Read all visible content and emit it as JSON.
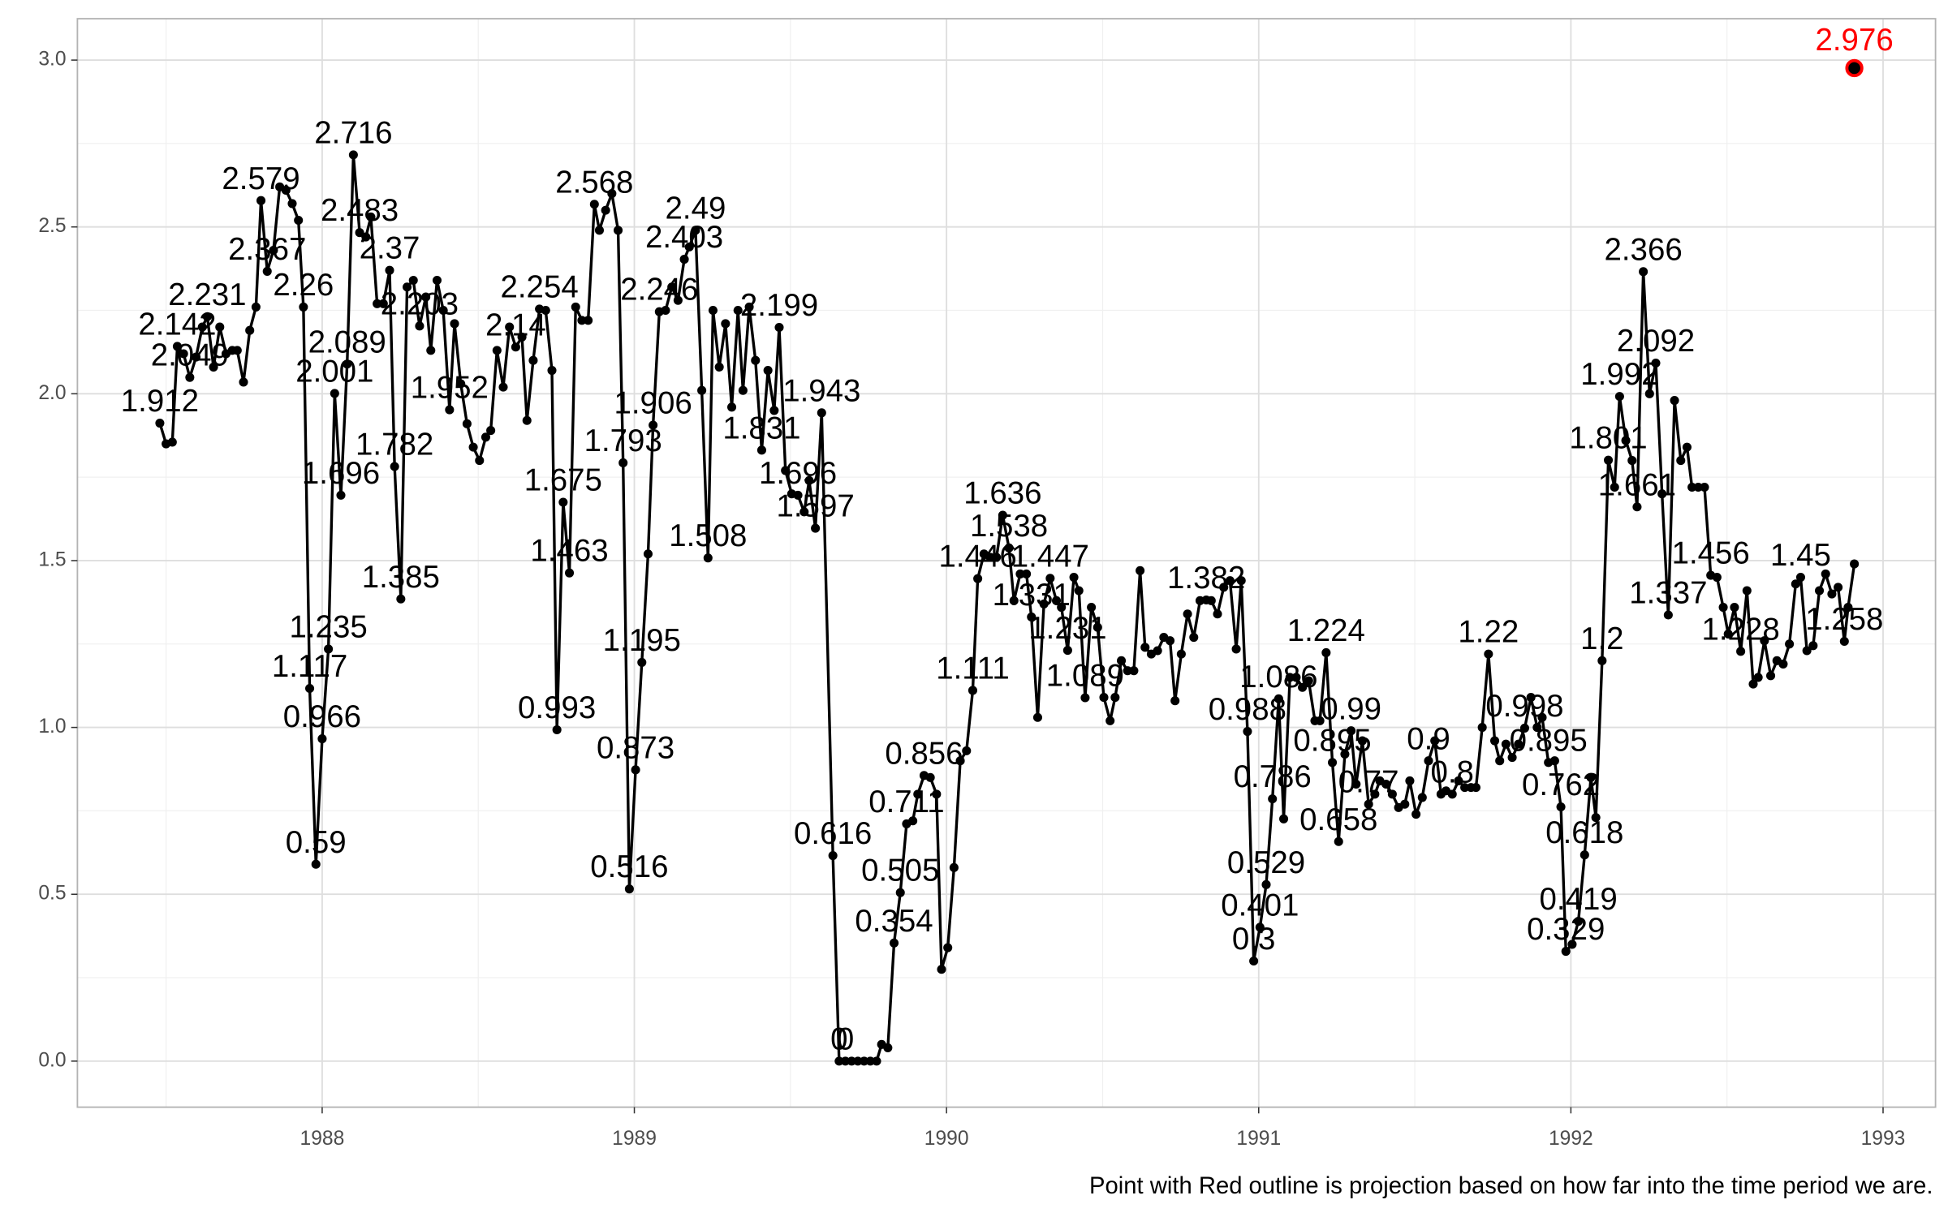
{
  "chart_data": {
    "type": "line",
    "caption": "Point with Red outline is projection based on how far into the time period we are.",
    "x": [
      1987.48,
      1987.5,
      1987.52,
      1987.536,
      1987.556,
      1987.576,
      1987.596,
      1987.616,
      1987.632,
      1987.652,
      1987.672,
      1987.692,
      1987.712,
      1987.728,
      1987.748,
      1987.768,
      1987.788,
      1987.804,
      1987.824,
      1987.844,
      1987.864,
      1987.884,
      1987.904,
      1987.924,
      1987.94,
      1987.96,
      1987.98,
      1988,
      1988.02,
      1988.04,
      1988.06,
      1988.08,
      1988.1,
      1988.12,
      1988.14,
      1988.156,
      1988.176,
      1988.196,
      1988.216,
      1988.232,
      1988.252,
      1988.272,
      1988.292,
      1988.312,
      1988.332,
      1988.348,
      1988.368,
      1988.388,
      1988.408,
      1988.424,
      1988.444,
      1988.464,
      1988.484,
      1988.504,
      1988.524,
      1988.54,
      1988.56,
      1988.58,
      1988.6,
      1988.62,
      1988.64,
      1988.656,
      1988.676,
      1988.696,
      1988.716,
      1988.736,
      1988.752,
      1988.772,
      1988.792,
      1988.812,
      1988.832,
      1988.852,
      1988.872,
      1988.888,
      1988.908,
      1988.928,
      1988.948,
      1988.964,
      1988.984,
      1989.004,
      1989.024,
      1989.044,
      1989.06,
      1989.08,
      1989.1,
      1989.12,
      1989.14,
      1989.16,
      1989.176,
      1989.196,
      1989.216,
      1989.236,
      1989.252,
      1989.272,
      1989.292,
      1989.312,
      1989.332,
      1989.348,
      1989.368,
      1989.388,
      1989.408,
      1989.428,
      1989.448,
      1989.464,
      1989.484,
      1989.504,
      1989.524,
      1989.544,
      1989.56,
      1989.58,
      1989.6,
      1989.636,
      1989.656,
      1989.676,
      1989.696,
      1989.716,
      1989.736,
      1989.756,
      1989.776,
      1989.792,
      1989.812,
      1989.832,
      1989.852,
      1989.872,
      1989.892,
      1989.908,
      1989.928,
      1989.948,
      1989.968,
      1989.984,
      1990.004,
      1990.024,
      1990.044,
      1990.064,
      1990.084,
      1990.1,
      1990.12,
      1990.14,
      1990.16,
      1990.18,
      1990.2,
      1990.216,
      1990.236,
      1990.256,
      1990.272,
      1990.292,
      1990.312,
      1990.332,
      1990.352,
      1990.368,
      1990.388,
      1990.408,
      1990.424,
      1990.444,
      1990.464,
      1990.484,
      1990.504,
      1990.524,
      1990.54,
      1990.56,
      1990.58,
      1990.6,
      1990.62,
      1990.636,
      1990.656,
      1990.676,
      1990.696,
      1990.716,
      1990.732,
      1990.752,
      1990.772,
      1990.792,
      1990.812,
      1990.832,
      1990.848,
      1990.868,
      1990.888,
      1990.908,
      1990.928,
      1990.944,
      1990.964,
      1990.984,
      1991.004,
      1991.024,
      1991.044,
      1991.064,
      1991.08,
      1991.1,
      1991.12,
      1991.14,
      1991.16,
      1991.18,
      1991.196,
      1991.216,
      1991.236,
      1991.256,
      1991.276,
      1991.296,
      1991.312,
      1991.332,
      1991.352,
      1991.372,
      1991.388,
      1991.408,
      1991.428,
      1991.448,
      1991.468,
      1991.484,
      1991.504,
      1991.524,
      1991.544,
      1991.564,
      1991.584,
      1991.6,
      1991.62,
      1991.64,
      1991.66,
      1991.68,
      1991.696,
      1991.716,
      1991.736,
      1991.756,
      1991.772,
      1991.792,
      1991.812,
      1991.832,
      1991.852,
      1991.872,
      1991.892,
      1991.908,
      1991.928,
      1991.948,
      1991.968,
      1991.984,
      1992.004,
      1992.024,
      1992.044,
      1992.064,
      1992.08,
      1992.1,
      1992.12,
      1992.14,
      1992.156,
      1992.176,
      1992.196,
      1992.212,
      1992.232,
      1992.252,
      1992.272,
      1992.292,
      1992.312,
      1992.332,
      1992.352,
      1992.372,
      1992.388,
      1992.408,
      1992.428,
      1992.448,
      1992.468,
      1992.488,
      1992.504,
      1992.524,
      1992.544,
      1992.564,
      1992.584,
      1992.6,
      1992.62,
      1992.64,
      1992.66,
      1992.68,
      1992.7,
      1992.72,
      1992.736,
      1992.756,
      1992.776,
      1992.796,
      1992.816,
      1992.836,
      1992.856,
      1992.876,
      1992.888,
      1992.908
    ],
    "series": [
      {
        "color": "#000000",
        "values": [
          1.912,
          1.85,
          1.855,
          2.142,
          2.12,
          2.049,
          2.11,
          2.2,
          2.231,
          2.08,
          2.2,
          2.12,
          2.13,
          2.13,
          2.035,
          2.19,
          2.26,
          2.579,
          2.367,
          2.43,
          2.62,
          2.61,
          2.57,
          2.52,
          2.26,
          1.117,
          0.59,
          0.966,
          1.235,
          2.001,
          1.696,
          2.089,
          2.716,
          2.483,
          2.47,
          2.53,
          2.27,
          2.27,
          2.37,
          1.782,
          1.385,
          2.32,
          2.34,
          2.203,
          2.29,
          2.13,
          2.34,
          2.25,
          1.952,
          2.21,
          2.03,
          1.91,
          1.84,
          1.8,
          1.87,
          1.89,
          2.13,
          2.02,
          2.2,
          2.14,
          2.17,
          1.92,
          2.1,
          2.254,
          2.25,
          2.07,
          0.993,
          1.675,
          1.463,
          2.26,
          2.22,
          2.22,
          2.568,
          2.49,
          2.55,
          2.6,
          2.49,
          1.793,
          0.516,
          0.873,
          1.195,
          1.52,
          1.906,
          2.246,
          2.25,
          2.32,
          2.28,
          2.403,
          2.44,
          2.49,
          2.01,
          1.508,
          2.25,
          2.08,
          2.21,
          1.96,
          2.25,
          2.01,
          2.26,
          2.1,
          1.831,
          2.07,
          1.95,
          2.199,
          1.77,
          1.7,
          1.696,
          1.646,
          1.74,
          1.597,
          1.943,
          0.616,
          0,
          0,
          0,
          0,
          0,
          0,
          0,
          0.05,
          0.04,
          0.354,
          0.505,
          0.711,
          0.72,
          0.8,
          0.856,
          0.85,
          0.8,
          0.275,
          0.34,
          0.58,
          0.9,
          0.93,
          1.111,
          1.446,
          1.52,
          1.51,
          1.51,
          1.636,
          1.538,
          1.38,
          1.46,
          1.46,
          1.331,
          1.03,
          1.37,
          1.447,
          1.38,
          1.36,
          1.231,
          1.45,
          1.41,
          1.089,
          1.36,
          1.3,
          1.09,
          1.02,
          1.09,
          1.2,
          1.17,
          1.17,
          1.47,
          1.24,
          1.22,
          1.23,
          1.27,
          1.26,
          1.08,
          1.22,
          1.34,
          1.27,
          1.38,
          1.382,
          1.38,
          1.34,
          1.42,
          1.44,
          1.235,
          1.44,
          0.988,
          0.3,
          0.401,
          0.529,
          0.786,
          1.086,
          0.726,
          1.15,
          1.15,
          1.12,
          1.14,
          1.02,
          1.02,
          1.224,
          0.895,
          0.658,
          0.92,
          0.99,
          0.83,
          0.96,
          0.77,
          0.8,
          0.84,
          0.83,
          0.8,
          0.76,
          0.77,
          0.84,
          0.74,
          0.79,
          0.9,
          0.96,
          0.8,
          0.81,
          0.8,
          0.84,
          0.82,
          0.82,
          0.82,
          1.0,
          1.22,
          0.96,
          0.9,
          0.95,
          0.91,
          0.95,
          0.998,
          1.09,
          1.0,
          1.03,
          0.895,
          0.9,
          0.762,
          0.329,
          0.35,
          0.419,
          0.618,
          0.85,
          0.73,
          1.2,
          1.801,
          1.72,
          1.992,
          1.86,
          1.8,
          1.661,
          2.366,
          2.0,
          2.092,
          1.7,
          1.337,
          1.98,
          1.8,
          1.84,
          1.72,
          1.72,
          1.72,
          1.456,
          1.45,
          1.36,
          1.28,
          1.36,
          1.228,
          1.41,
          1.13,
          1.15,
          1.26,
          1.155,
          1.2,
          1.19,
          1.25,
          1.43,
          1.45,
          1.23,
          1.245,
          1.41,
          1.46,
          1.4,
          1.42,
          1.258,
          1.36,
          1.49
        ],
        "value_labels": [
          "1.912",
          null,
          null,
          "2.142",
          null,
          "2.049",
          null,
          null,
          "2.231",
          null,
          null,
          null,
          null,
          null,
          null,
          null,
          null,
          "2.579",
          "2.367",
          null,
          null,
          null,
          null,
          null,
          "2.26",
          "1.117",
          "0.59",
          "0.966",
          "1.235",
          "2.001",
          "1.696",
          "2.089",
          "2.716",
          "2.483",
          null,
          null,
          null,
          null,
          "2.37",
          "1.782",
          "1.385",
          null,
          null,
          "2.203",
          null,
          null,
          null,
          null,
          "1.952",
          null,
          null,
          null,
          null,
          null,
          null,
          null,
          null,
          null,
          null,
          "2.14",
          null,
          null,
          null,
          "2.254",
          null,
          null,
          "0.993",
          "1.675",
          "1.463",
          null,
          null,
          null,
          "2.568",
          null,
          null,
          null,
          null,
          "1.793",
          "0.516",
          "0.873",
          "1.195",
          null,
          "1.906",
          "2.246",
          null,
          null,
          null,
          "2.403",
          null,
          "2.49",
          null,
          "1.508",
          null,
          null,
          null,
          null,
          null,
          null,
          null,
          null,
          "1.831",
          null,
          null,
          "2.199",
          null,
          null,
          "1.696",
          null,
          null,
          "1.597",
          "1.943",
          "0.616",
          "0",
          "0",
          null,
          null,
          null,
          null,
          null,
          null,
          null,
          "0.354",
          "0.505",
          "0.711",
          null,
          null,
          "0.856",
          null,
          null,
          null,
          null,
          null,
          null,
          null,
          "1.111",
          "1.446",
          null,
          null,
          null,
          "1.636",
          "1.538",
          null,
          null,
          null,
          "1.331",
          null,
          null,
          "1.447",
          null,
          null,
          "1.231",
          null,
          null,
          "1.089",
          null,
          null,
          null,
          null,
          null,
          null,
          null,
          null,
          null,
          null,
          null,
          null,
          null,
          null,
          null,
          null,
          null,
          null,
          null,
          "1.382",
          null,
          null,
          null,
          null,
          null,
          null,
          "0.988",
          "0.3",
          "0.401",
          "0.529",
          "0.786",
          "1.086",
          null,
          null,
          null,
          null,
          null,
          null,
          null,
          "1.224",
          "0.895",
          "0.658",
          null,
          "0.99",
          null,
          null,
          "0.77",
          null,
          null,
          null,
          null,
          null,
          null,
          null,
          null,
          null,
          "0.9",
          null,
          null,
          null,
          "0.8",
          null,
          null,
          null,
          null,
          null,
          "1.22",
          null,
          null,
          null,
          null,
          null,
          "0.998",
          null,
          null,
          null,
          "0.895",
          null,
          "0.762",
          "0.329",
          null,
          "0.419",
          "0.618",
          null,
          null,
          "1.2",
          "1.801",
          null,
          "1.992",
          null,
          null,
          "1.661",
          "2.366",
          null,
          "2.092",
          null,
          "1.337",
          null,
          null,
          null,
          null,
          null,
          null,
          "1.456",
          null,
          null,
          null,
          null,
          "1.228",
          null,
          null,
          null,
          null,
          null,
          null,
          null,
          null,
          null,
          "1.45",
          null,
          null,
          null,
          null,
          null,
          null,
          "1.258",
          null,
          null
        ]
      }
    ],
    "projection": {
      "x": 1992.908,
      "value": 2.976,
      "color": "#ff0000"
    },
    "xlim": [
      1987.216,
      1993.168
    ],
    "xticks": [
      1988,
      1989,
      1990,
      1991,
      1992,
      1993
    ],
    "xminor": [
      1987.5,
      1988.5,
      1989.5,
      1990.5,
      1991.5,
      1992.5
    ],
    "ylim": [
      -0.138,
      3.124
    ],
    "yticks": [
      {
        "value": 0,
        "label": "0.0"
      },
      {
        "value": 0.5,
        "label": "0.5"
      },
      {
        "value": 1,
        "label": "1.0"
      },
      {
        "value": 1.5,
        "label": "1.5"
      },
      {
        "value": 2,
        "label": "2.0"
      },
      {
        "value": 2.5,
        "label": "2.5"
      },
      {
        "value": 3,
        "label": "3.0"
      }
    ],
    "yminor": [
      0.25,
      0.75,
      1.25,
      1.75,
      2.25,
      2.75
    ],
    "grid": true
  }
}
